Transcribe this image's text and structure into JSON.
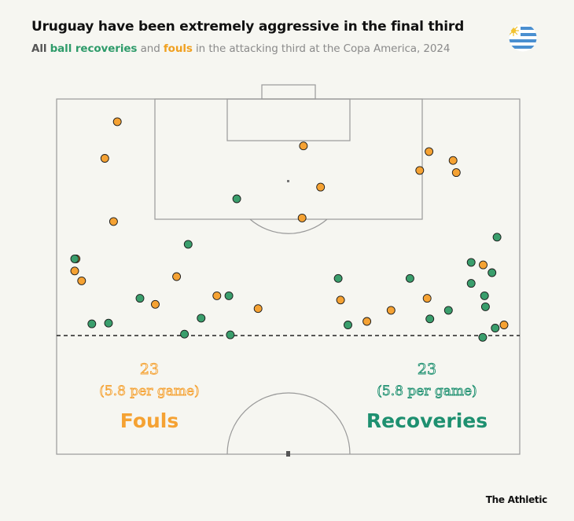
{
  "header": {
    "title": "Uruguay have been extremely aggressive in the final third",
    "subtitle_lead": "All",
    "subtitle_recoveries": "ball recoveries",
    "subtitle_and": "and",
    "subtitle_fouls": "fouls",
    "subtitle_tail": "in the attacking third at the Copa America, 2024"
  },
  "colors": {
    "fouls": "#f5a233",
    "recoveries": "#3a9e6c",
    "recoveries_text": "#1e9070",
    "pitch_line": "#999999",
    "background": "#f6f6f1"
  },
  "flag_icon": "uruguay-flag-icon",
  "stats": {
    "fouls": {
      "count": "23",
      "per_game": "(5.8 per game)",
      "label": "Fouls"
    },
    "recoveries": {
      "count": "23",
      "per_game": "(5.8 per game)",
      "label": "Recoveries"
    }
  },
  "brand": "The Athletic",
  "chart_data": {
    "type": "scatter",
    "title": "Uruguay have been extremely aggressive in the final third",
    "subtitle": "All ball recoveries and fouls in the attacking third at the Copa America, 2024",
    "coordinate_system": "pitch position, percent of pitch width from left (0-100) and percent of visible half-pitch length from the opponent goal line (0-100)",
    "xlim": [
      0,
      100
    ],
    "ylim": [
      0,
      100
    ],
    "attacking_third_line": 66.6,
    "series": [
      {
        "name": "Fouls",
        "points": [
          [
            13.1,
            6.4
          ],
          [
            10.4,
            16.7
          ],
          [
            12.3,
            34.5
          ],
          [
            4.2,
            45.0
          ],
          [
            3.9,
            48.4
          ],
          [
            5.4,
            51.2
          ],
          [
            25.9,
            50.0
          ],
          [
            21.3,
            57.8
          ],
          [
            34.6,
            55.4
          ],
          [
            43.5,
            59.0
          ],
          [
            53.3,
            13.2
          ],
          [
            57.0,
            24.8
          ],
          [
            53.0,
            33.5
          ],
          [
            61.3,
            56.6
          ],
          [
            67.0,
            62.6
          ],
          [
            72.2,
            59.5
          ],
          [
            78.4,
            20.1
          ],
          [
            80.4,
            14.8
          ],
          [
            85.6,
            17.3
          ],
          [
            86.3,
            20.7
          ],
          [
            80.0,
            56.1
          ],
          [
            92.1,
            46.7
          ],
          [
            96.6,
            63.6
          ]
        ]
      },
      {
        "name": "Recoveries",
        "points": [
          [
            3.9,
            45.0
          ],
          [
            7.6,
            63.3
          ],
          [
            11.2,
            63.1
          ],
          [
            18.0,
            56.1
          ],
          [
            28.4,
            40.9
          ],
          [
            27.6,
            66.2
          ],
          [
            31.2,
            61.7
          ],
          [
            37.2,
            55.4
          ],
          [
            37.5,
            66.4
          ],
          [
            38.9,
            28.1
          ],
          [
            60.8,
            50.5
          ],
          [
            62.9,
            63.6
          ],
          [
            76.3,
            50.5
          ],
          [
            80.6,
            61.9
          ],
          [
            84.6,
            59.5
          ],
          [
            89.5,
            46.0
          ],
          [
            89.5,
            51.9
          ],
          [
            92.4,
            55.4
          ],
          [
            92.6,
            58.5
          ],
          [
            92.0,
            67.1
          ],
          [
            94.7,
            64.5
          ],
          [
            94.0,
            48.9
          ],
          [
            95.1,
            38.9
          ]
        ]
      }
    ]
  }
}
